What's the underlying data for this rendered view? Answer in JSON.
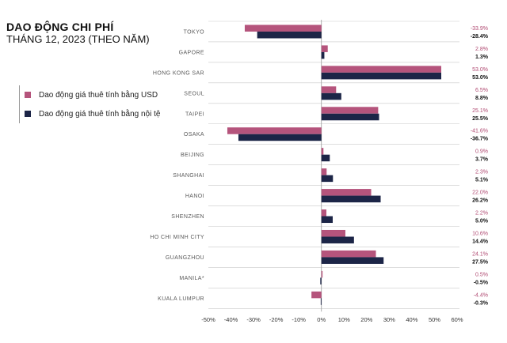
{
  "chart_data": {
    "type": "bar",
    "orientation": "horizontal",
    "title": "DAO ĐỘNG CHI PHÍ",
    "subtitle": "THÁNG 12, 2023 (THEO NĂM)",
    "categories": [
      "TOKYO",
      "GAPORE",
      "HONG KONG SAR",
      "SEOUL",
      "TAIPEI",
      "OSAKA",
      "BEIJING",
      "SHANGHAI",
      "HANOI",
      "SHENZHEN",
      "HO CHI MINH CITY",
      "GUANGZHOU",
      "MANILA*",
      "KUALA LUMPUR"
    ],
    "series": [
      {
        "name": "Dao động giá thuê tính bằng USD",
        "values": [
          -33.9,
          2.8,
          53.0,
          6.5,
          25.1,
          -41.6,
          0.9,
          2.3,
          22.0,
          2.2,
          10.6,
          24.1,
          0.5,
          -4.4
        ],
        "labels": [
          "-33.9%",
          "2.8%",
          "53.0%",
          "6.5%",
          "25.1%",
          "-41.6%",
          "0.9%",
          "2.3%",
          "22.0%",
          "2.2%",
          "10.6%",
          "24.1%",
          "0.5%",
          "-4.4%"
        ],
        "color": "#b5547c"
      },
      {
        "name": "Dao động giá thuê tính bằng nội tệ",
        "values": [
          -28.4,
          1.3,
          53.0,
          8.8,
          25.5,
          -36.7,
          3.7,
          5.1,
          26.2,
          5.0,
          14.4,
          27.5,
          -0.5,
          -0.3
        ],
        "labels": [
          "-28.4%",
          "1.3%",
          "53.0%",
          "8.8%",
          "25.5%",
          "-36.7%",
          "3.7%",
          "5.1%",
          "26.2%",
          "5.0%",
          "14.4%",
          "27.5%",
          "-0.5%",
          "-0.3%"
        ],
        "color": "#1c2547"
      }
    ],
    "xlim": [
      -50,
      60
    ],
    "xticks": [
      -50,
      -40,
      -30,
      -20,
      -10,
      0,
      10,
      20,
      30,
      40,
      50,
      60
    ],
    "xtick_labels": [
      "-50%",
      "-40%",
      "-30%",
      "-20%",
      "-10%",
      "0%",
      "10%",
      "20%",
      "30%",
      "40%",
      "50%",
      "60%"
    ],
    "legend_position": "left",
    "grid": false
  }
}
